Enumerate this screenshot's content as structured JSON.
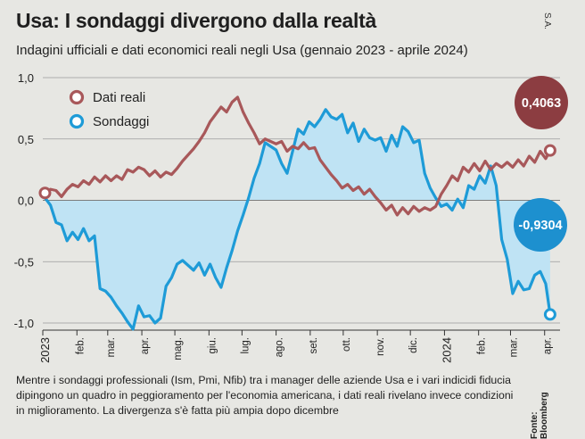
{
  "header": {
    "title": "Usa: I sondaggi divergono dalla realtà",
    "subtitle": "Indagini ufficiali e dati economici reali negli Usa (gennaio 2023 - aprile 2024)",
    "credit": "S.A."
  },
  "footer": {
    "note": "Mentre i sondaggi professionali (Ism, Pmi, Nfib) tra i manager delle aziende Usa e i vari indicidi fiducia dipingono un quadro in peggioramento per l'economia americana, i dati reali rivelano invece condizioni in miglioramento. La divergenza s'è fatta più ampia dopo dicembre",
    "source": "Fonte: Bloomberg"
  },
  "colors": {
    "dati_reali": "#a8585a",
    "sondaggi": "#1e9bd7",
    "sondaggi_fill": "#bfe3f4",
    "bubble_reali": "#8c3d41",
    "bubble_sondaggi": "#1d90cf"
  },
  "chart_data": {
    "type": "line",
    "ylim": [
      -1.0,
      1.0
    ],
    "yticks": [
      1.0,
      0.5,
      0.0,
      -0.5,
      -1.0
    ],
    "ytick_labels": [
      "1,0",
      "0,5",
      "0,0",
      "-0,5",
      "-1,0"
    ],
    "xlim": [
      "2023-01-01",
      "2024-04-15"
    ],
    "xticks": [
      {
        "date": "2023-01-01",
        "label": "2023"
      },
      {
        "date": "2023-02-01",
        "label": "feb."
      },
      {
        "date": "2023-03-01",
        "label": "mar."
      },
      {
        "date": "2023-04-01",
        "label": "apr."
      },
      {
        "date": "2023-05-01",
        "label": "mag."
      },
      {
        "date": "2023-06-01",
        "label": "giu."
      },
      {
        "date": "2023-07-01",
        "label": "lug."
      },
      {
        "date": "2023-08-01",
        "label": "ago."
      },
      {
        "date": "2023-09-01",
        "label": "set."
      },
      {
        "date": "2023-10-01",
        "label": "ott."
      },
      {
        "date": "2023-11-01",
        "label": "nov."
      },
      {
        "date": "2023-12-01",
        "label": "dic."
      },
      {
        "date": "2024-01-01",
        "label": "2024"
      },
      {
        "date": "2024-02-01",
        "label": "feb."
      },
      {
        "date": "2024-03-01",
        "label": "mar."
      },
      {
        "date": "2024-04-01",
        "label": "apr."
      }
    ],
    "legend_position": "top-left",
    "series": [
      {
        "name": "Dati reali",
        "end_label": "0,4063",
        "points": [
          [
            "2023-01-03",
            0.06
          ],
          [
            "2023-01-08",
            0.09
          ],
          [
            "2023-01-13",
            0.08
          ],
          [
            "2023-01-18",
            0.03
          ],
          [
            "2023-01-23",
            0.09
          ],
          [
            "2023-01-28",
            0.13
          ],
          [
            "2023-02-02",
            0.11
          ],
          [
            "2023-02-07",
            0.16
          ],
          [
            "2023-02-12",
            0.13
          ],
          [
            "2023-02-17",
            0.19
          ],
          [
            "2023-02-22",
            0.15
          ],
          [
            "2023-02-27",
            0.2
          ],
          [
            "2023-03-04",
            0.16
          ],
          [
            "2023-03-09",
            0.2
          ],
          [
            "2023-03-14",
            0.17
          ],
          [
            "2023-03-19",
            0.25
          ],
          [
            "2023-03-24",
            0.23
          ],
          [
            "2023-03-29",
            0.27
          ],
          [
            "2023-04-03",
            0.25
          ],
          [
            "2023-04-08",
            0.2
          ],
          [
            "2023-04-13",
            0.24
          ],
          [
            "2023-04-18",
            0.19
          ],
          [
            "2023-04-23",
            0.23
          ],
          [
            "2023-04-28",
            0.21
          ],
          [
            "2023-05-03",
            0.26
          ],
          [
            "2023-05-08",
            0.32
          ],
          [
            "2023-05-13",
            0.37
          ],
          [
            "2023-05-18",
            0.42
          ],
          [
            "2023-05-23",
            0.48
          ],
          [
            "2023-05-28",
            0.55
          ],
          [
            "2023-06-02",
            0.64
          ],
          [
            "2023-06-07",
            0.7
          ],
          [
            "2023-06-12",
            0.76
          ],
          [
            "2023-06-17",
            0.72
          ],
          [
            "2023-06-22",
            0.8
          ],
          [
            "2023-06-27",
            0.84
          ],
          [
            "2023-07-02",
            0.72
          ],
          [
            "2023-07-07",
            0.63
          ],
          [
            "2023-07-12",
            0.55
          ],
          [
            "2023-07-17",
            0.46
          ],
          [
            "2023-07-22",
            0.5
          ],
          [
            "2023-07-27",
            0.48
          ],
          [
            "2023-08-01",
            0.46
          ],
          [
            "2023-08-06",
            0.48
          ],
          [
            "2023-08-11",
            0.4
          ],
          [
            "2023-08-16",
            0.44
          ],
          [
            "2023-08-21",
            0.42
          ],
          [
            "2023-08-26",
            0.47
          ],
          [
            "2023-08-31",
            0.42
          ],
          [
            "2023-09-05",
            0.43
          ],
          [
            "2023-09-10",
            0.33
          ],
          [
            "2023-09-15",
            0.27
          ],
          [
            "2023-09-20",
            0.21
          ],
          [
            "2023-09-25",
            0.16
          ],
          [
            "2023-09-30",
            0.1
          ],
          [
            "2023-10-05",
            0.13
          ],
          [
            "2023-10-10",
            0.08
          ],
          [
            "2023-10-15",
            0.11
          ],
          [
            "2023-10-20",
            0.05
          ],
          [
            "2023-10-25",
            0.09
          ],
          [
            "2023-10-30",
            0.03
          ],
          [
            "2023-11-04",
            -0.02
          ],
          [
            "2023-11-09",
            -0.08
          ],
          [
            "2023-11-14",
            -0.04
          ],
          [
            "2023-11-19",
            -0.12
          ],
          [
            "2023-11-24",
            -0.06
          ],
          [
            "2023-11-29",
            -0.11
          ],
          [
            "2023-12-04",
            -0.05
          ],
          [
            "2023-12-09",
            -0.09
          ],
          [
            "2023-12-14",
            -0.06
          ],
          [
            "2023-12-19",
            -0.08
          ],
          [
            "2023-12-24",
            -0.05
          ],
          [
            "2023-12-29",
            0.05
          ],
          [
            "2024-01-03",
            0.12
          ],
          [
            "2024-01-08",
            0.2
          ],
          [
            "2024-01-13",
            0.16
          ],
          [
            "2024-01-18",
            0.27
          ],
          [
            "2024-01-23",
            0.23
          ],
          [
            "2024-01-28",
            0.3
          ],
          [
            "2024-02-02",
            0.24
          ],
          [
            "2024-02-07",
            0.32
          ],
          [
            "2024-02-12",
            0.25
          ],
          [
            "2024-02-17",
            0.3
          ],
          [
            "2024-02-22",
            0.27
          ],
          [
            "2024-02-27",
            0.31
          ],
          [
            "2024-03-03",
            0.27
          ],
          [
            "2024-03-08",
            0.33
          ],
          [
            "2024-03-13",
            0.28
          ],
          [
            "2024-03-18",
            0.36
          ],
          [
            "2024-03-23",
            0.31
          ],
          [
            "2024-03-28",
            0.4
          ],
          [
            "2024-04-02",
            0.34
          ],
          [
            "2024-04-06",
            0.4063
          ]
        ]
      },
      {
        "name": "Sondaggi",
        "end_label": "-0,9304",
        "points": [
          [
            "2023-01-03",
            0.02
          ],
          [
            "2023-01-08",
            -0.04
          ],
          [
            "2023-01-13",
            -0.18
          ],
          [
            "2023-01-18",
            -0.2
          ],
          [
            "2023-01-23",
            -0.33
          ],
          [
            "2023-01-28",
            -0.26
          ],
          [
            "2023-02-02",
            -0.32
          ],
          [
            "2023-02-07",
            -0.23
          ],
          [
            "2023-02-12",
            -0.33
          ],
          [
            "2023-02-17",
            -0.29
          ],
          [
            "2023-02-22",
            -0.72
          ],
          [
            "2023-02-27",
            -0.74
          ],
          [
            "2023-03-04",
            -0.79
          ],
          [
            "2023-03-09",
            -0.86
          ],
          [
            "2023-03-14",
            -0.92
          ],
          [
            "2023-03-19",
            -0.99
          ],
          [
            "2023-03-24",
            -1.05
          ],
          [
            "2023-03-29",
            -0.86
          ],
          [
            "2023-04-03",
            -0.95
          ],
          [
            "2023-04-08",
            -0.94
          ],
          [
            "2023-04-13",
            -1.0
          ],
          [
            "2023-04-18",
            -0.96
          ],
          [
            "2023-04-23",
            -0.7
          ],
          [
            "2023-04-28",
            -0.63
          ],
          [
            "2023-05-03",
            -0.52
          ],
          [
            "2023-05-08",
            -0.49
          ],
          [
            "2023-05-13",
            -0.53
          ],
          [
            "2023-05-18",
            -0.57
          ],
          [
            "2023-05-23",
            -0.51
          ],
          [
            "2023-05-28",
            -0.61
          ],
          [
            "2023-06-02",
            -0.52
          ],
          [
            "2023-06-07",
            -0.63
          ],
          [
            "2023-06-12",
            -0.71
          ],
          [
            "2023-06-17",
            -0.55
          ],
          [
            "2023-06-22",
            -0.41
          ],
          [
            "2023-06-27",
            -0.25
          ],
          [
            "2023-07-02",
            -0.12
          ],
          [
            "2023-07-07",
            0.02
          ],
          [
            "2023-07-12",
            0.18
          ],
          [
            "2023-07-17",
            0.3
          ],
          [
            "2023-07-22",
            0.47
          ],
          [
            "2023-07-27",
            0.44
          ],
          [
            "2023-08-01",
            0.41
          ],
          [
            "2023-08-06",
            0.3
          ],
          [
            "2023-08-11",
            0.22
          ],
          [
            "2023-08-16",
            0.4
          ],
          [
            "2023-08-21",
            0.58
          ],
          [
            "2023-08-26",
            0.54
          ],
          [
            "2023-08-31",
            0.64
          ],
          [
            "2023-09-05",
            0.6
          ],
          [
            "2023-09-10",
            0.66
          ],
          [
            "2023-09-15",
            0.74
          ],
          [
            "2023-09-20",
            0.68
          ],
          [
            "2023-09-25",
            0.66
          ],
          [
            "2023-09-30",
            0.7
          ],
          [
            "2023-10-05",
            0.55
          ],
          [
            "2023-10-10",
            0.63
          ],
          [
            "2023-10-15",
            0.48
          ],
          [
            "2023-10-20",
            0.58
          ],
          [
            "2023-10-25",
            0.51
          ],
          [
            "2023-10-30",
            0.49
          ],
          [
            "2023-11-04",
            0.51
          ],
          [
            "2023-11-09",
            0.4
          ],
          [
            "2023-11-14",
            0.53
          ],
          [
            "2023-11-19",
            0.44
          ],
          [
            "2023-11-24",
            0.6
          ],
          [
            "2023-11-29",
            0.56
          ],
          [
            "2023-12-04",
            0.47
          ],
          [
            "2023-12-09",
            0.49
          ],
          [
            "2023-12-14",
            0.22
          ],
          [
            "2023-12-19",
            0.1
          ],
          [
            "2023-12-24",
            0.02
          ],
          [
            "2023-12-29",
            -0.05
          ],
          [
            "2024-01-03",
            -0.03
          ],
          [
            "2024-01-08",
            -0.08
          ],
          [
            "2024-01-13",
            0.01
          ],
          [
            "2024-01-18",
            -0.06
          ],
          [
            "2024-01-23",
            0.12
          ],
          [
            "2024-01-28",
            0.09
          ],
          [
            "2024-02-02",
            0.2
          ],
          [
            "2024-02-07",
            0.14
          ],
          [
            "2024-02-12",
            0.28
          ],
          [
            "2024-02-17",
            0.12
          ],
          [
            "2024-02-22",
            -0.32
          ],
          [
            "2024-02-27",
            -0.48
          ],
          [
            "2024-03-03",
            -0.76
          ],
          [
            "2024-03-08",
            -0.66
          ],
          [
            "2024-03-13",
            -0.73
          ],
          [
            "2024-03-18",
            -0.72
          ],
          [
            "2024-03-23",
            -0.61
          ],
          [
            "2024-03-28",
            -0.58
          ],
          [
            "2024-04-02",
            -0.68
          ],
          [
            "2024-04-06",
            -0.9304
          ]
        ]
      }
    ]
  }
}
